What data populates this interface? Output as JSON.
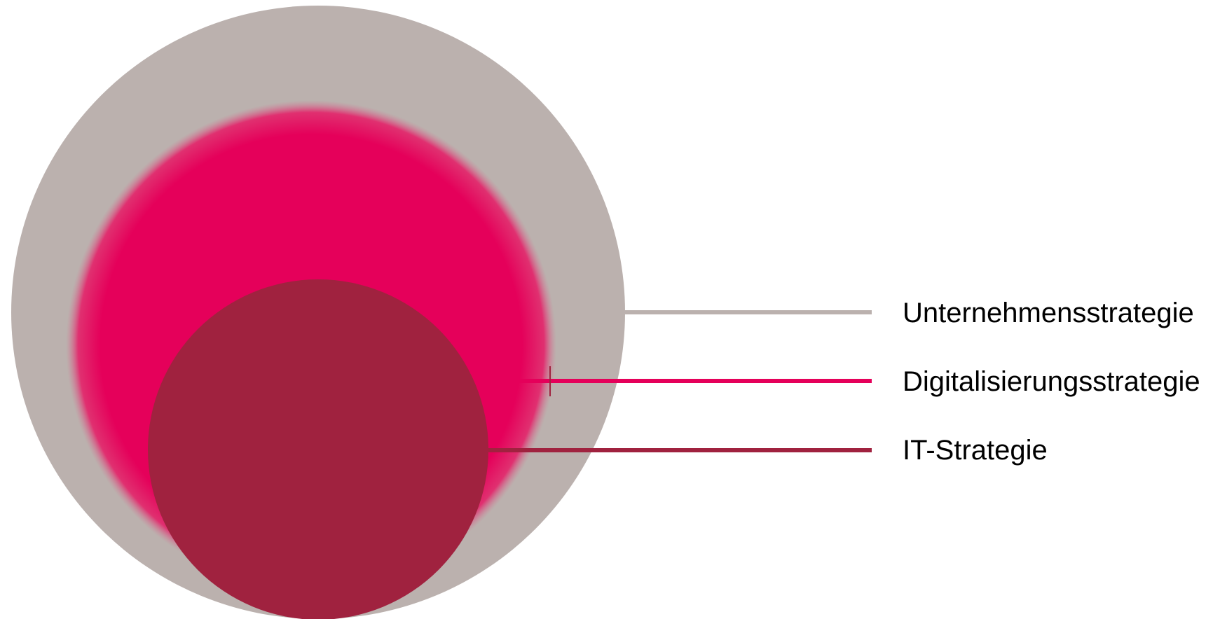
{
  "diagram": {
    "layers": [
      {
        "label": "Unternehmensstrategie",
        "color": "#bbb1ae"
      },
      {
        "label": "Digitalisierungsstrategie",
        "color": "#e5005a"
      },
      {
        "label": "IT-Strategie",
        "color": "#a0223f"
      }
    ],
    "background": "#ffffff",
    "text_color": "#000000"
  }
}
